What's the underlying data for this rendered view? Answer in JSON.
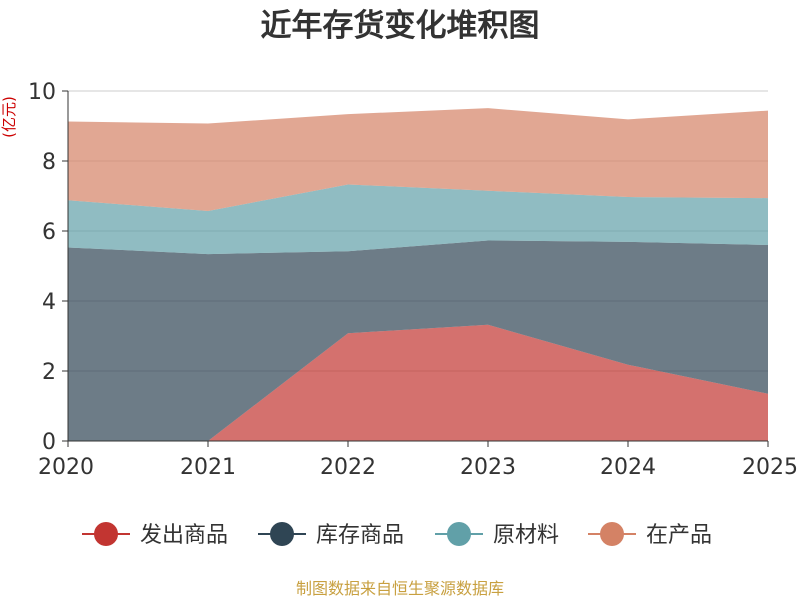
{
  "chart_data": {
    "type": "area",
    "title": "近年存货变化堆积图",
    "ylabel": "(亿元)",
    "x": [
      "2020",
      "2021",
      "2022",
      "2023",
      "2024",
      "2025"
    ],
    "ylim": [
      0,
      10
    ],
    "yticks": [
      0,
      2,
      4,
      6,
      8,
      10
    ],
    "stacked": true,
    "grid": true,
    "legend_position": "bottom",
    "series": [
      {
        "name": "发出商品",
        "color": "#c23531",
        "values": [
          0,
          0,
          3.08,
          3.32,
          2.18,
          1.35
        ]
      },
      {
        "name": "库存商品",
        "color": "#2f4554",
        "values": [
          5.53,
          5.34,
          2.34,
          2.41,
          3.51,
          4.25
        ]
      },
      {
        "name": "原材料",
        "color": "#61a0a8",
        "values": [
          1.35,
          1.23,
          1.91,
          1.42,
          1.28,
          1.34
        ]
      },
      {
        "name": "在产品",
        "color": "#d48265",
        "values": [
          2.25,
          2.5,
          2.01,
          2.36,
          2.22,
          2.5
        ]
      }
    ]
  },
  "footer": {
    "source": "制图数据来自恒生聚源数据库"
  },
  "colors": {
    "title": "#333333",
    "axis": "#333333",
    "grid": "#cccccc",
    "ylabel": "#cc0000",
    "source": "#c8a040"
  }
}
